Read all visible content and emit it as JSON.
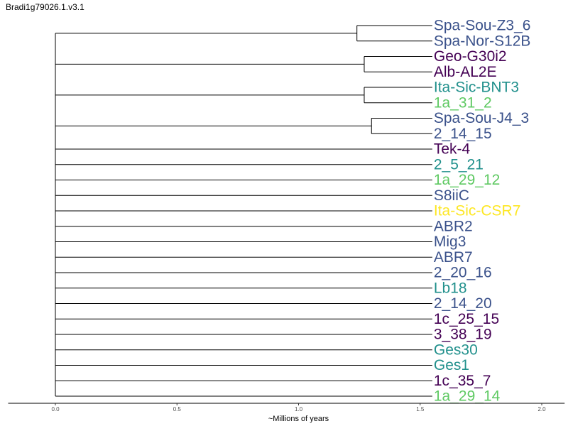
{
  "title": "Bradi1g79026.1.v3.1",
  "chart_data": {
    "type": "dendrogram",
    "orientation": "left-root",
    "title": "Bradi1g79026.1.v3.1",
    "xlabel": "~Millions of years",
    "xlim": [
      -0.2,
      2.1
    ],
    "xticks": [
      0.0,
      0.5,
      1.0,
      1.5,
      2.0
    ],
    "xtick_labels": [
      "0.0",
      "0.5",
      "1.0",
      "1.5",
      "2.0"
    ],
    "tip_x": 1.55,
    "root_x": 0.0,
    "tips": [
      {
        "label": "Spa-Sou-Z3_6",
        "color": "#3b528b"
      },
      {
        "label": "Spa-Nor-S12B",
        "color": "#3b528b"
      },
      {
        "label": "Geo-G30i2",
        "color": "#440154"
      },
      {
        "label": "Alb-AL2E",
        "color": "#440154"
      },
      {
        "label": "Ita-Sic-BNT3",
        "color": "#21908c"
      },
      {
        "label": "1a_31_2",
        "color": "#5ec962"
      },
      {
        "label": "Spa-Sou-J4_3",
        "color": "#3b528b"
      },
      {
        "label": "2_14_15",
        "color": "#3b528b"
      },
      {
        "label": "Tek-4",
        "color": "#440154"
      },
      {
        "label": "2_5_21",
        "color": "#21908c"
      },
      {
        "label": "1a_29_12",
        "color": "#5ec962"
      },
      {
        "label": "S8iiC",
        "color": "#3b528b"
      },
      {
        "label": "Ita-Sic-CSR7",
        "color": "#fde725"
      },
      {
        "label": "ABR2",
        "color": "#3b528b"
      },
      {
        "label": "Mig3",
        "color": "#3b528b"
      },
      {
        "label": "ABR7",
        "color": "#3b528b"
      },
      {
        "label": "2_20_16",
        "color": "#3b528b"
      },
      {
        "label": "Lb18",
        "color": "#21908c"
      },
      {
        "label": "2_14_20",
        "color": "#3b528b"
      },
      {
        "label": "1c_25_15",
        "color": "#440154"
      },
      {
        "label": "3_38_19",
        "color": "#440154"
      },
      {
        "label": "Ges30",
        "color": "#21908c"
      },
      {
        "label": "Ges1",
        "color": "#21908c"
      },
      {
        "label": "1c_35_7",
        "color": "#440154"
      },
      {
        "label": "1a_29_14",
        "color": "#5ec962"
      }
    ],
    "clades": [
      {
        "tips": [
          0,
          1
        ],
        "node_x": 1.24
      },
      {
        "tips": [
          2,
          3
        ],
        "node_x": 1.27
      },
      {
        "tips": [
          4,
          5
        ],
        "node_x": 1.27
      },
      {
        "tips": [
          6,
          7
        ],
        "node_x": 1.3
      }
    ]
  }
}
